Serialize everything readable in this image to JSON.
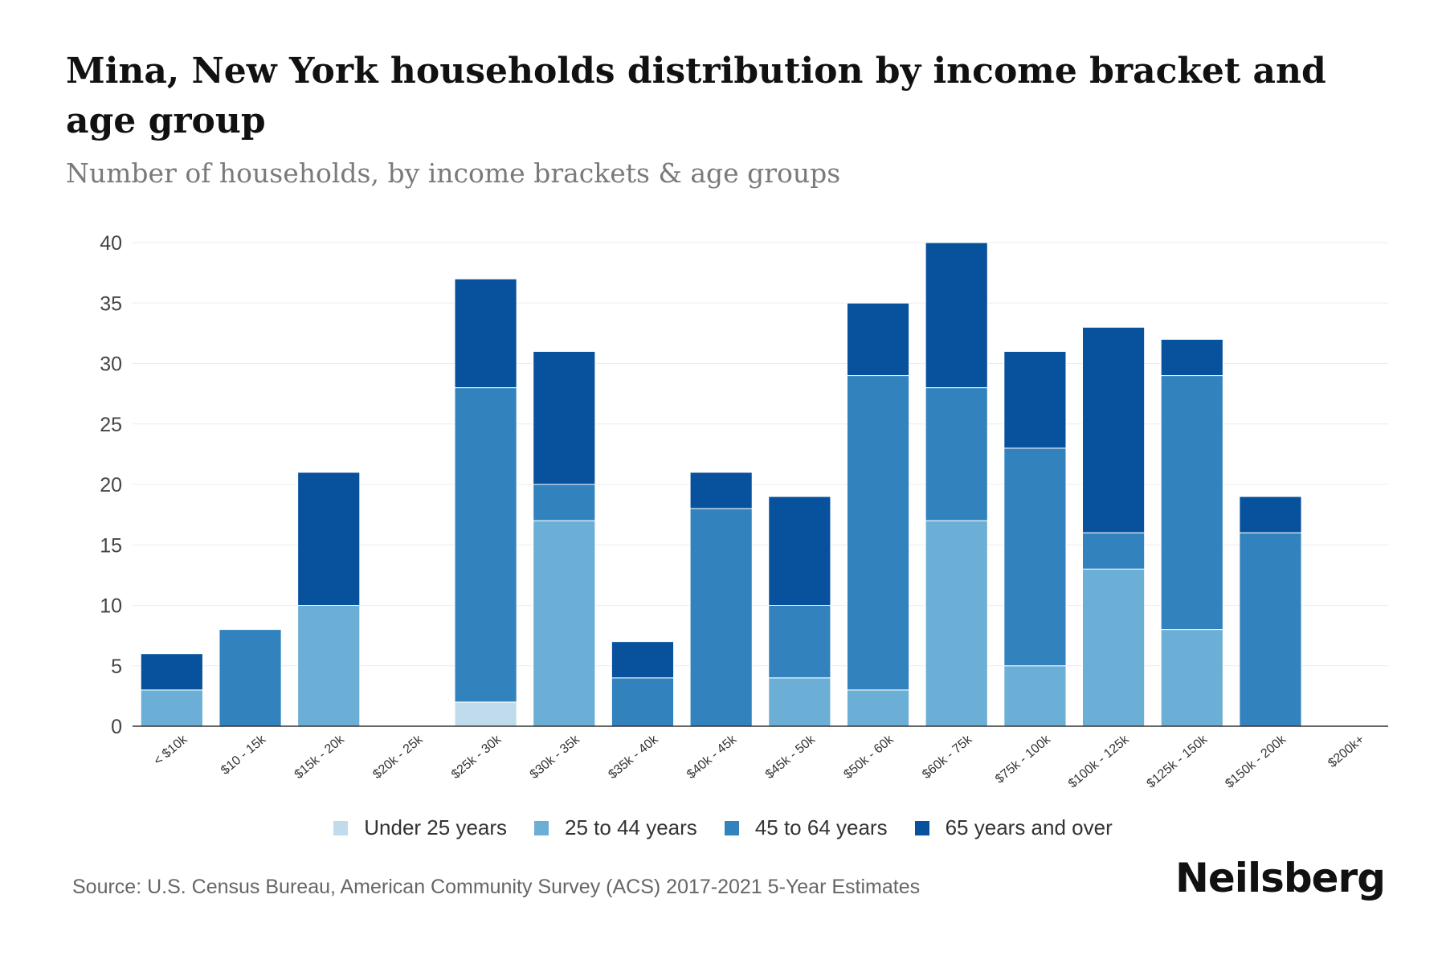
{
  "chart_data": {
    "type": "bar",
    "stacked": true,
    "title": "Mina, New York households distribution by income bracket and age group",
    "subtitle": "Number of households, by income brackets & age groups",
    "xlabel": "",
    "ylabel": "",
    "ylim": [
      0,
      40
    ],
    "yticks": [
      0,
      5,
      10,
      15,
      20,
      25,
      30,
      35,
      40
    ],
    "grid": true,
    "legend_position": "bottom",
    "categories": [
      "< $10k",
      "$10 - 15k",
      "$15k - 20k",
      "$20k - 25k",
      "$25k - 30k",
      "$30k - 35k",
      "$35k - 40k",
      "$40k - 45k",
      "$45k - 50k",
      "$50k - 60k",
      "$60k - 75k",
      "$75k - 100k",
      "$100k - 125k",
      "$125k - 150k",
      "$150k - 200k",
      "$200k+"
    ],
    "series": [
      {
        "name": "Under 25 years",
        "color": "#c0dcec",
        "values": [
          0,
          0,
          0,
          0,
          2,
          0,
          0,
          0,
          0,
          0,
          0,
          0,
          0,
          0,
          0,
          0
        ]
      },
      {
        "name": "25 to 44 years",
        "color": "#6baed6",
        "values": [
          3,
          0,
          10,
          0,
          0,
          17,
          0,
          0,
          4,
          3,
          17,
          5,
          13,
          8,
          0,
          0
        ]
      },
      {
        "name": "45 to 64 years",
        "color": "#3282bd",
        "values": [
          0,
          8,
          0,
          0,
          26,
          3,
          4,
          18,
          6,
          26,
          11,
          18,
          3,
          21,
          16,
          0
        ]
      },
      {
        "name": "65 years and over",
        "color": "#08519c",
        "values": [
          3,
          0,
          11,
          0,
          9,
          11,
          3,
          3,
          9,
          6,
          12,
          8,
          17,
          3,
          3,
          0
        ]
      }
    ]
  },
  "footer": {
    "source": "Source: U.S. Census Bureau, American Community Survey (ACS) 2017-2021 5-Year Estimates",
    "brand": "Neilsberg"
  }
}
